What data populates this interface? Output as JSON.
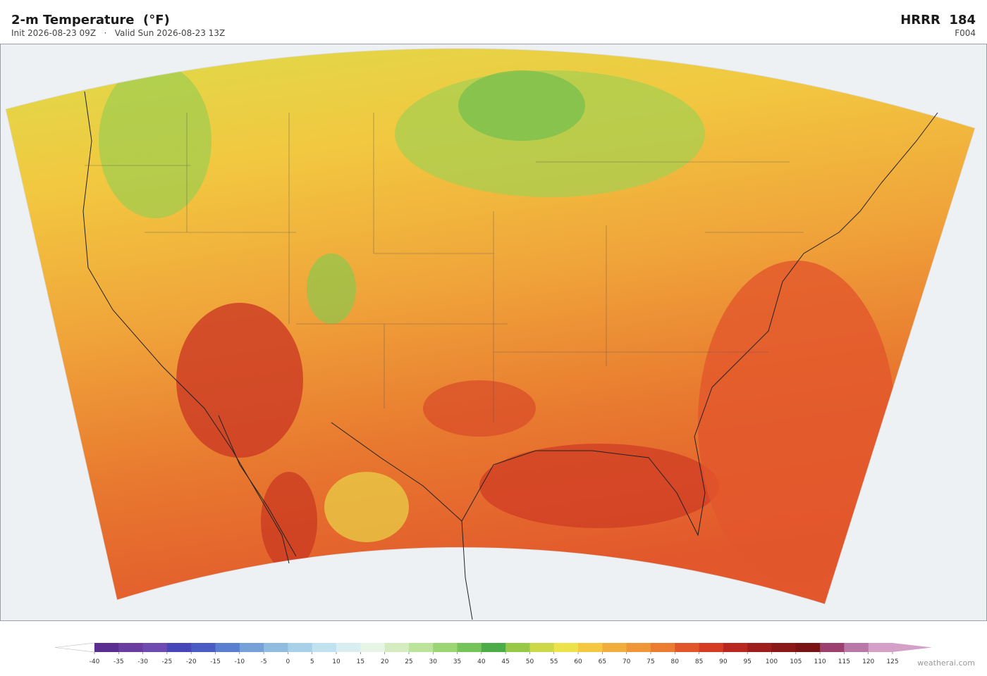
{
  "header": {
    "title": "2-m Temperature  (°F)",
    "subtitle": "Init 2026-08-23 09Z   ·   Valid Sun 2026-08-23 13Z",
    "model": "HRRR  184",
    "forecast_hour": "F004"
  },
  "colorbar": {
    "ticks": [
      -40,
      -35,
      -30,
      -25,
      -20,
      -15,
      -10,
      -5,
      0,
      5,
      10,
      15,
      20,
      25,
      30,
      35,
      40,
      45,
      50,
      55,
      60,
      65,
      70,
      75,
      80,
      85,
      90,
      95,
      100,
      105,
      110,
      115,
      120,
      125
    ],
    "colors": [
      "#5a2d91",
      "#6a3da0",
      "#6d4bb0",
      "#4646b8",
      "#4a5cc4",
      "#5a7fd0",
      "#75a0d8",
      "#90bce0",
      "#a8d0e8",
      "#c0e2ee",
      "#d8eef0",
      "#e6f5e6",
      "#d4ecc0",
      "#bce39a",
      "#9cd574",
      "#74c45a",
      "#4cad48",
      "#98c848",
      "#cdd848",
      "#ece24a",
      "#f5c842",
      "#f2ae3c",
      "#ef9638",
      "#ec7c32",
      "#e2562c",
      "#d63c24",
      "#b82820",
      "#9e1e1e",
      "#8a1818",
      "#7a1414",
      "#9c4070",
      "#b878a8",
      "#d4a0c8"
    ],
    "under_color": "#ffffff",
    "over_color": "#d4a0c8"
  },
  "footer": {
    "credit": "weatherai.com"
  }
}
